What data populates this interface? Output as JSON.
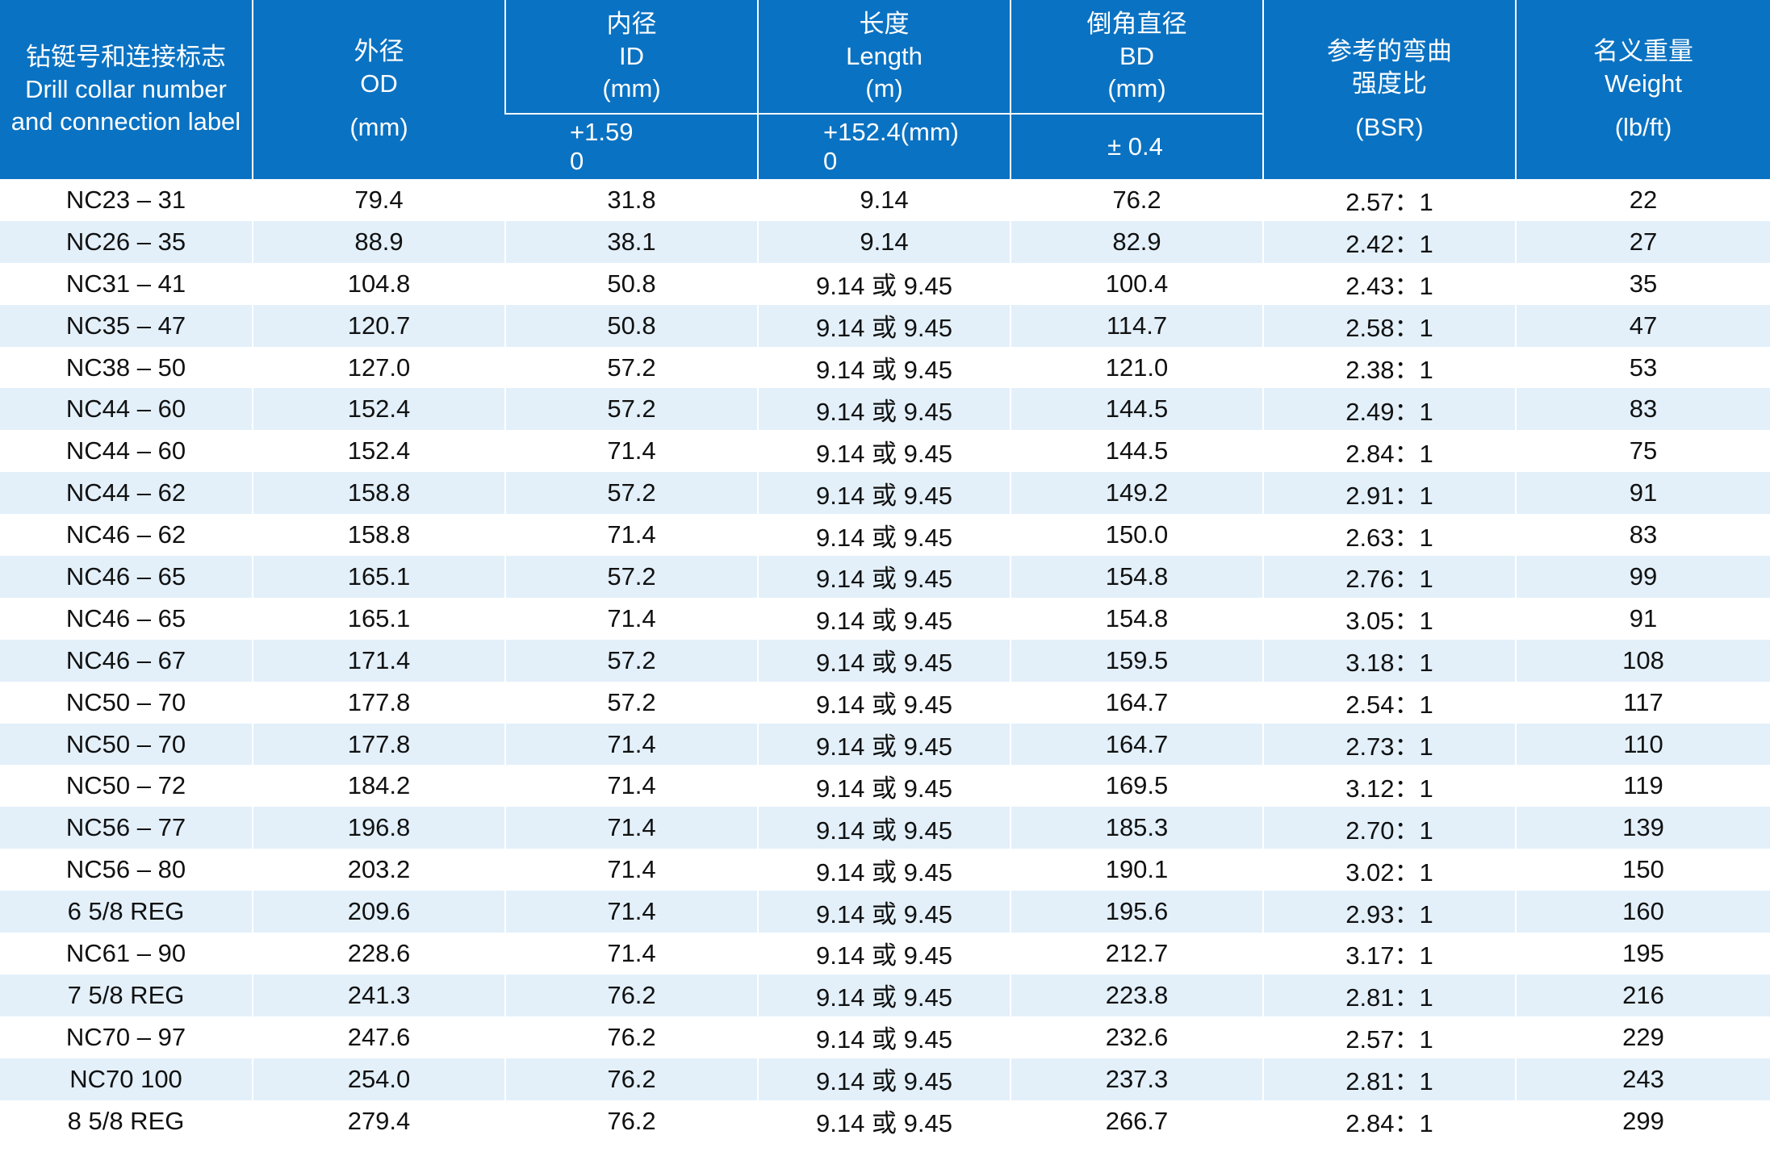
{
  "header": {
    "col1": {
      "zh": "钻铤号和连接标志",
      "en1": "Drill collar number",
      "en2": "and connection label"
    },
    "col2": {
      "zh": "外径",
      "en": "OD",
      "unit": "(mm)"
    },
    "col3": {
      "zh": "内径",
      "en": "ID",
      "unit": "(mm)",
      "tol1": "+1.59",
      "tol2": "0"
    },
    "col4": {
      "zh": "长度",
      "en": "Length",
      "unit": "(m)",
      "tol1": "+152.4(mm)",
      "tol2": "0"
    },
    "col5": {
      "zh": "倒角直径",
      "en": "BD",
      "unit": "(mm)",
      "tol": "± 0.4"
    },
    "col6": {
      "zh1": "参考的弯曲",
      "zh2": "强度比",
      "unit": "(BSR)"
    },
    "col7": {
      "zh": "名义重量",
      "en": "Weight",
      "unit": "(lb/ft)"
    }
  },
  "rows": [
    [
      "NC23 – 31",
      "79.4",
      "31.8",
      "9.14",
      "76.2",
      "2.57：1",
      "22"
    ],
    [
      "NC26 – 35",
      "88.9",
      "38.1",
      "9.14",
      "82.9",
      "2.42：1",
      "27"
    ],
    [
      "NC31 – 41",
      "104.8",
      "50.8",
      "9.14 或 9.45",
      "100.4",
      "2.43：1",
      "35"
    ],
    [
      "NC35 – 47",
      "120.7",
      "50.8",
      "9.14 或 9.45",
      "114.7",
      "2.58：1",
      "47"
    ],
    [
      "NC38 – 50",
      "127.0",
      "57.2",
      "9.14 或 9.45",
      "121.0",
      "2.38：1",
      "53"
    ],
    [
      "NC44 – 60",
      "152.4",
      "57.2",
      "9.14 或 9.45",
      "144.5",
      "2.49：1",
      "83"
    ],
    [
      "NC44 – 60",
      "152.4",
      "71.4",
      "9.14 或 9.45",
      "144.5",
      "2.84：1",
      "75"
    ],
    [
      "NC44 – 62",
      "158.8",
      "57.2",
      "9.14 或 9.45",
      "149.2",
      "2.91：1",
      "91"
    ],
    [
      "NC46 – 62",
      "158.8",
      "71.4",
      "9.14 或 9.45",
      "150.0",
      "2.63：1",
      "83"
    ],
    [
      "NC46 – 65",
      "165.1",
      "57.2",
      "9.14 或 9.45",
      "154.8",
      "2.76：1",
      "99"
    ],
    [
      "NC46 – 65",
      "165.1",
      "71.4",
      "9.14 或 9.45",
      "154.8",
      "3.05：1",
      "91"
    ],
    [
      "NC46 – 67",
      "171.4",
      "57.2",
      "9.14 或 9.45",
      "159.5",
      "3.18：1",
      "108"
    ],
    [
      "NC50 – 70",
      "177.8",
      "57.2",
      "9.14 或 9.45",
      "164.7",
      "2.54：1",
      "117"
    ],
    [
      "NC50 – 70",
      "177.8",
      "71.4",
      "9.14 或 9.45",
      "164.7",
      "2.73：1",
      "110"
    ],
    [
      "NC50 – 72",
      "184.2",
      "71.4",
      "9.14 或 9.45",
      "169.5",
      "3.12：1",
      "119"
    ],
    [
      "NC56 – 77",
      "196.8",
      "71.4",
      "9.14 或 9.45",
      "185.3",
      "2.70：1",
      "139"
    ],
    [
      "NC56 – 80",
      "203.2",
      "71.4",
      "9.14 或 9.45",
      "190.1",
      "3.02：1",
      "150"
    ],
    [
      "6 5/8 REG",
      "209.6",
      "71.4",
      "9.14 或 9.45",
      "195.6",
      "2.93：1",
      "160"
    ],
    [
      "NC61 – 90",
      "228.6",
      "71.4",
      "9.14 或 9.45",
      "212.7",
      "3.17：1",
      "195"
    ],
    [
      "7 5/8 REG",
      "241.3",
      "76.2",
      "9.14 或 9.45",
      "223.8",
      "2.81：1",
      "216"
    ],
    [
      "NC70 – 97",
      "247.6",
      "76.2",
      "9.14 或 9.45",
      "232.6",
      "2.57：1",
      "229"
    ],
    [
      "NC70  100",
      "254.0",
      "76.2",
      "9.14 或 9.45",
      "237.3",
      "2.81：1",
      "243"
    ],
    [
      "8 5/8 REG",
      "279.4",
      "76.2",
      "9.14 或 9.45",
      "266.7",
      "2.84：1",
      "299"
    ]
  ]
}
